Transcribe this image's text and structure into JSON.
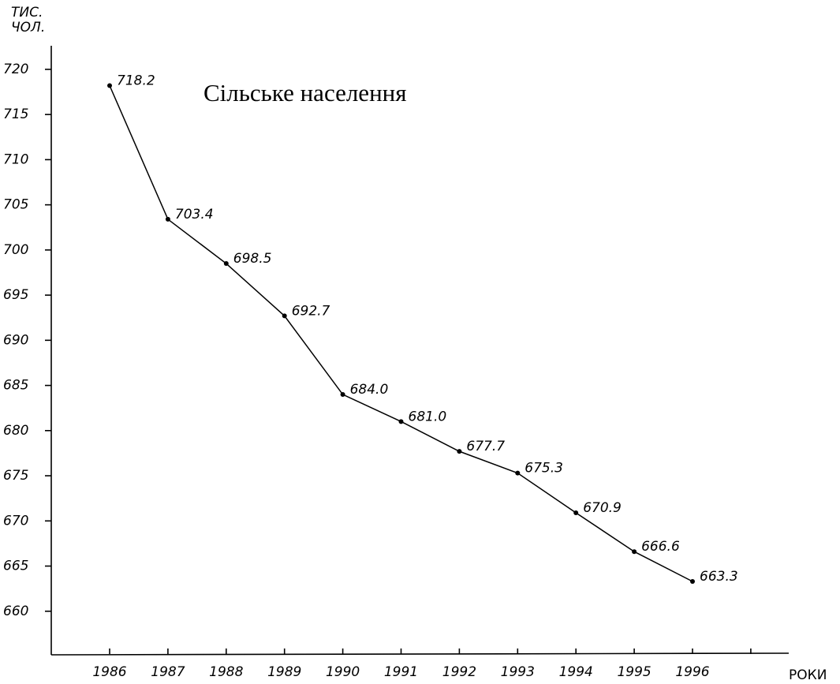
{
  "chart_data": {
    "type": "line",
    "title": "Сільське населення",
    "y_label": [
      "ТИС.",
      "ЧОЛ."
    ],
    "x_label": "РОКИ",
    "categories": [
      "1986",
      "1987",
      "1988",
      "1989",
      "1990",
      "1991",
      "1992",
      "1993",
      "1994",
      "1995",
      "1996",
      null
    ],
    "values": [
      718.2,
      703.4,
      698.5,
      692.7,
      684.0,
      681.0,
      677.7,
      675.3,
      670.9,
      666.6,
      663.3,
      null
    ],
    "value_labels": [
      "718.2",
      "703.4",
      "698.5",
      "692.7",
      "684.0",
      "681.0",
      "677.7",
      "675.3",
      "670.9",
      "666.6",
      "663.3",
      null
    ],
    "color": "#000000",
    "ylim": [
      655,
      722
    ],
    "yticks": [
      660,
      665,
      670,
      675,
      680,
      685,
      690,
      695,
      700,
      705,
      710,
      715,
      720
    ]
  }
}
